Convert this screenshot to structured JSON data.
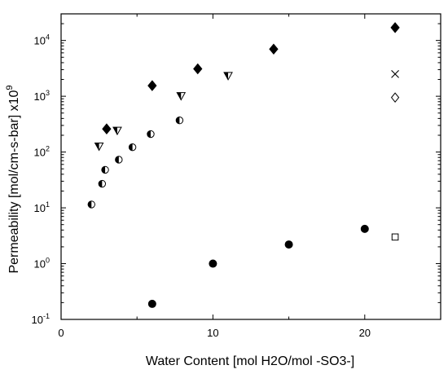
{
  "chart_data": {
    "type": "scatter",
    "title": "",
    "xlabel": "Water Content [mol H2O/mol -SO3-]",
    "ylabel_main": "Permeability [mol/cm-s-bar] x10",
    "ylabel_sup": "9",
    "xlim": [
      0,
      25
    ],
    "ylim": [
      0.1,
      30000
    ],
    "yscale": "log",
    "x_ticks": [
      0,
      10,
      20
    ],
    "x_tick_labels": [
      "0",
      "10",
      "20"
    ],
    "y_ticks": [
      0.1,
      1,
      10,
      100,
      1000,
      10000
    ],
    "y_tick_labels": [
      {
        "base": "10",
        "exp": "-1"
      },
      {
        "base": "10",
        "exp": "0"
      },
      {
        "base": "10",
        "exp": "1"
      },
      {
        "base": "10",
        "exp": "2"
      },
      {
        "base": "10",
        "exp": "3"
      },
      {
        "base": "10",
        "exp": "4"
      }
    ],
    "grid": false,
    "legend": "none",
    "series": [
      {
        "marker": "diamond-filled",
        "color": "#000000",
        "x": [
          3,
          6,
          9,
          14,
          22
        ],
        "y": [
          260,
          1550,
          3100,
          7000,
          17000
        ]
      },
      {
        "marker": "triangle-half",
        "color": "#000000",
        "x": [
          2.5,
          3.7,
          7.9,
          11
        ],
        "y": [
          125,
          240,
          1000,
          2300
        ]
      },
      {
        "marker": "circle-half",
        "color": "#000000",
        "x": [
          2,
          2.7,
          2.9,
          3.8,
          4.7,
          5.9,
          7.8
        ],
        "y": [
          11.5,
          27,
          48,
          73,
          122,
          210,
          370
        ]
      },
      {
        "marker": "circle-filled",
        "color": "#000000",
        "x": [
          6,
          10,
          15,
          20
        ],
        "y": [
          0.19,
          1.0,
          2.2,
          4.2
        ]
      },
      {
        "marker": "x",
        "color": "#000000",
        "x": [
          22
        ],
        "y": [
          2500
        ]
      },
      {
        "marker": "diamond-open",
        "color": "#000000",
        "x": [
          22
        ],
        "y": [
          950
        ]
      },
      {
        "marker": "square-open",
        "color": "#000000",
        "x": [
          22
        ],
        "y": [
          3
        ]
      }
    ]
  }
}
